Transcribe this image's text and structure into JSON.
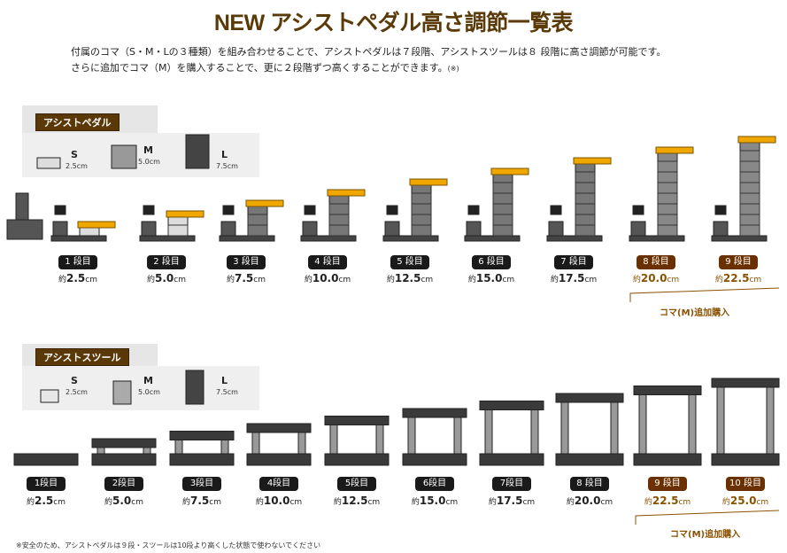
{
  "title": "NEW アシストペダル高さ調節一覧表",
  "intro": {
    "line1": "付属のコマ（S・M・Lの３種類）を組み合わせることで、アシストペダルは７段階、アシストスツールは８ 段階に高さ調節が可能です。",
    "line2": "さらに追加でコマ（M）を購入することで、更に２段階ずつ高くすることができます。",
    "note_mark": "(※)"
  },
  "colors": {
    "brand_brown": "#5a3808",
    "highlight": "#6b3000",
    "accent_yellow": "#f0a800",
    "dark": "#1a1a1a"
  },
  "pedal": {
    "tag": "アシストペダル",
    "legend": [
      {
        "label": "S",
        "size": "2.5cm"
      },
      {
        "label": "M",
        "size": "5.0cm"
      },
      {
        "label": "L",
        "size": "7.5cm"
      }
    ],
    "steps": [
      {
        "step": "1 段目",
        "prefix": "約",
        "value": "2.5",
        "unit": "cm",
        "extra": false
      },
      {
        "step": "2 段目",
        "prefix": "約",
        "value": "5.0",
        "unit": "cm",
        "extra": false
      },
      {
        "step": "3 段目",
        "prefix": "約",
        "value": "7.5",
        "unit": "cm",
        "extra": false
      },
      {
        "step": "4 段目",
        "prefix": "約",
        "value": "10.0",
        "unit": "cm",
        "extra": false
      },
      {
        "step": "5 段目",
        "prefix": "約",
        "value": "12.5",
        "unit": "cm",
        "extra": false
      },
      {
        "step": "6 段目",
        "prefix": "約",
        "value": "15.0",
        "unit": "cm",
        "extra": false
      },
      {
        "step": "7 段目",
        "prefix": "約",
        "value": "17.5",
        "unit": "cm",
        "extra": false
      },
      {
        "step": "8 段目",
        "prefix": "約",
        "value": "20.0",
        "unit": "cm",
        "extra": true
      },
      {
        "step": "9 段目",
        "prefix": "約",
        "value": "22.5",
        "unit": "cm",
        "extra": true
      }
    ],
    "extra_label": "コマ(M)追加購入"
  },
  "stool": {
    "tag": "アシストスツール",
    "legend": [
      {
        "label": "S",
        "size": "2.5cm"
      },
      {
        "label": "M",
        "size": "5.0cm"
      },
      {
        "label": "L",
        "size": "7.5cm"
      }
    ],
    "steps": [
      {
        "step": "1段目",
        "prefix": "約",
        "value": "2.5",
        "unit": "cm",
        "extra": false
      },
      {
        "step": "2段目",
        "prefix": "約",
        "value": "5.0",
        "unit": "cm",
        "extra": false
      },
      {
        "step": "3段目",
        "prefix": "約",
        "value": "7.5",
        "unit": "cm",
        "extra": false
      },
      {
        "step": "4段目",
        "prefix": "約",
        "value": "10.0",
        "unit": "cm",
        "extra": false
      },
      {
        "step": "5段目",
        "prefix": "約",
        "value": "12.5",
        "unit": "cm",
        "extra": false
      },
      {
        "step": "6段目",
        "prefix": "約",
        "value": "15.0",
        "unit": "cm",
        "extra": false
      },
      {
        "step": "7段目",
        "prefix": "約",
        "value": "17.5",
        "unit": "cm",
        "extra": false
      },
      {
        "step": "8 段目",
        "prefix": "約",
        "value": "20.0",
        "unit": "cm",
        "extra": false
      },
      {
        "step": "9 段目",
        "prefix": "約",
        "value": "22.5",
        "unit": "cm",
        "extra": true
      },
      {
        "step": "10 段目",
        "prefix": "約",
        "value": "25.0",
        "unit": "cm",
        "extra": true
      }
    ],
    "extra_label": "コマ(M)追加購入"
  },
  "footnote": "※安全のため、アシストペダルは９段・スツールは10段より高くした状態で使わないでください"
}
